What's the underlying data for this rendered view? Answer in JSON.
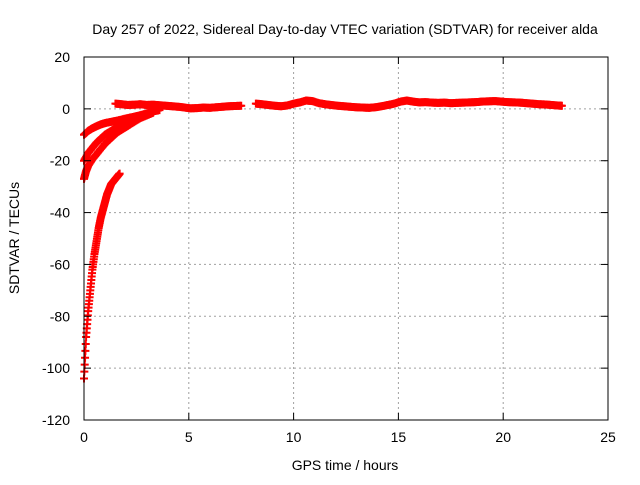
{
  "chart_data": {
    "type": "scatter",
    "title": "Day 257 of 2022, Sidereal Day-to-day VTEC variation (SDTVAR) for receiver alda",
    "xlabel": "GPS time / hours",
    "ylabel": "SDTVAR / TECUs",
    "xlim": [
      0,
      25
    ],
    "ylim": [
      -120,
      20
    ],
    "xticks": [
      0,
      5,
      10,
      15,
      20,
      25
    ],
    "yticks": [
      -120,
      -100,
      -80,
      -60,
      -40,
      -20,
      0,
      20
    ],
    "grid": true,
    "marker": "plus",
    "series_color": "#ff0000",
    "series": [
      {
        "segments": [
          {
            "x": [
              0.0,
              0.1,
              0.2,
              0.3,
              0.4,
              0.5,
              0.6,
              0.7,
              0.8,
              0.9,
              1.0,
              1.1,
              1.2,
              1.3,
              1.4,
              1.5,
              1.6,
              1.7
            ],
            "y": [
              -104,
              -88,
              -78,
              -70,
              -62,
              -56,
              -51,
              -46,
              -42,
              -39,
              -36,
              -33,
              -31,
              -29,
              -28,
              -27,
              -26,
              -25
            ]
          },
          {
            "x": [
              0.0,
              0.1,
              0.2,
              0.4,
              0.6,
              0.8,
              1.0,
              1.2,
              1.4,
              1.6,
              1.8,
              2.0,
              2.2,
              2.5,
              2.8,
              3.0
            ],
            "y": [
              -27,
              -24,
              -22,
              -19.5,
              -17.5,
              -15.5,
              -13.5,
              -12,
              -10.5,
              -9,
              -8,
              -7,
              -6,
              -4.5,
              -3,
              -2
            ]
          },
          {
            "x": [
              0.0,
              0.2,
              0.4,
              0.6,
              0.8,
              1.0,
              1.2,
              1.4,
              1.6,
              1.8,
              2.0,
              2.2,
              2.4,
              2.7,
              3.0,
              3.3
            ],
            "y": [
              -20,
              -17,
              -15,
              -13,
              -11.5,
              -10,
              -9,
              -8,
              -7,
              -6.3,
              -5.6,
              -5,
              -4.3,
              -3.5,
              -2.5,
              -1.5
            ]
          },
          {
            "x": [
              0.0,
              0.2,
              0.4,
              0.6,
              0.8,
              1.0,
              1.3,
              1.6,
              2.0,
              2.4,
              2.8,
              3.2,
              3.6
            ],
            "y": [
              -10,
              -8.5,
              -7.5,
              -6.7,
              -6,
              -5.5,
              -5,
              -4.5,
              -3.7,
              -3,
              -2.2,
              -1.2,
              -0.5
            ]
          },
          {
            "x": [
              1.5,
              1.8,
              2.1,
              2.4,
              2.7,
              3.0,
              3.3,
              3.6,
              3.9,
              4.2,
              4.5,
              4.8,
              5.1,
              5.4,
              5.7,
              6.0,
              6.3,
              6.6,
              6.9,
              7.2,
              7.5
            ],
            "y": [
              2,
              1.8,
              1.5,
              1.6,
              1.8,
              1.5,
              1.6,
              1.4,
              1.2,
              1.0,
              0.8,
              0.5,
              0.2,
              0.3,
              0.5,
              0.4,
              0.6,
              0.8,
              1.0,
              1.1,
              1.2
            ]
          },
          {
            "x": [
              8.2,
              8.5,
              8.8,
              9.1,
              9.4,
              9.7,
              10.0,
              10.3,
              10.6,
              10.9,
              11.2,
              11.5,
              11.8,
              12.1,
              12.4,
              12.7,
              13.0,
              13.3,
              13.6,
              13.9,
              14.2,
              14.5,
              14.8,
              15.1,
              15.4,
              15.7,
              16.0,
              16.3,
              16.6,
              16.9,
              17.2,
              17.5,
              17.8,
              18.1,
              18.4,
              18.7,
              19.0,
              19.3,
              19.6,
              19.9,
              20.2,
              20.5,
              20.8,
              21.1,
              21.4,
              21.7,
              22.0,
              22.3,
              22.6,
              22.8
            ],
            "y": [
              2.0,
              1.8,
              1.5,
              1.2,
              1.0,
              1.3,
              2.0,
              2.5,
              3.2,
              3.0,
              2.2,
              1.8,
              1.5,
              1.2,
              1.0,
              0.8,
              0.6,
              0.5,
              0.4,
              0.6,
              1.0,
              1.5,
              2.0,
              2.8,
              3.2,
              2.8,
              2.5,
              2.6,
              2.4,
              2.3,
              2.4,
              2.2,
              2.3,
              2.4,
              2.5,
              2.6,
              2.8,
              2.9,
              3.0,
              2.8,
              2.6,
              2.5,
              2.4,
              2.2,
              2.0,
              1.8,
              1.7,
              1.5,
              1.3,
              1.2
            ]
          }
        ]
      }
    ]
  }
}
